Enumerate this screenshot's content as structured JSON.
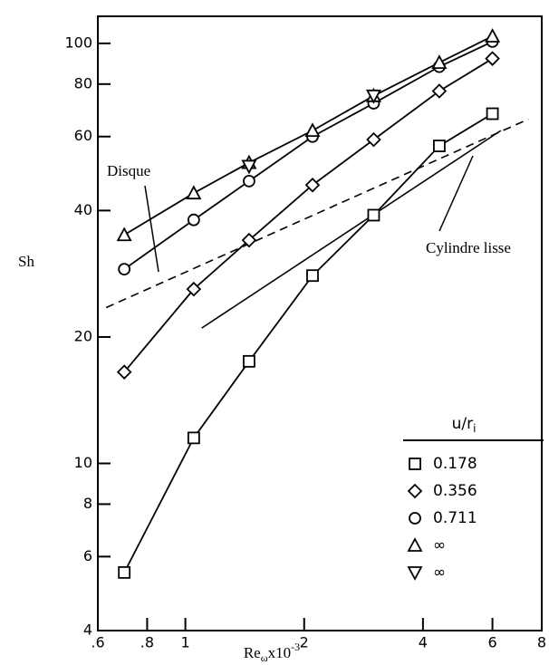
{
  "chart_data": {
    "type": "line",
    "x_label": {
      "text": "Re",
      "subscript": "ω",
      "suffix": "x10",
      "superscript": "-3"
    },
    "y_label": "Sh",
    "x": [
      0.7,
      1.05,
      1.45,
      2.1,
      3.0,
      4.4,
      6.0
    ],
    "series": [
      {
        "name": "0.178",
        "marker": "square",
        "color": "#000",
        "values": [
          5.5,
          11.5,
          17.5,
          28,
          39,
          57,
          68
        ]
      },
      {
        "name": "0.356",
        "marker": "diamond",
        "color": "#000",
        "values": [
          16.5,
          26,
          34,
          46,
          59,
          77,
          92
        ]
      },
      {
        "name": "0.711",
        "marker": "circle",
        "color": "#000",
        "values": [
          29,
          38,
          47,
          60,
          72,
          88,
          101
        ]
      },
      {
        "name": "∞",
        "marker": "triangle-up",
        "color": "#000",
        "values": [
          35,
          44,
          52,
          62,
          75,
          90,
          104
        ]
      },
      {
        "name": "∞",
        "marker": "triangle-down",
        "color": "#000",
        "values": [
          null,
          null,
          51,
          null,
          75,
          null,
          null
        ]
      }
    ],
    "reference_lines": [
      {
        "name": "Disque",
        "dash": true,
        "x": [
          0.63,
          7.4
        ],
        "values": [
          23.5,
          66
        ]
      },
      {
        "name": "Cylindre lisse",
        "dash": false,
        "x": [
          1.1,
          6.3
        ],
        "values": [
          21,
          62
        ]
      }
    ],
    "legend_title": {
      "text": "u/r",
      "subscript": "i"
    },
    "xscale": "log",
    "yscale": "log",
    "xlim": [
      0.6,
      8
    ],
    "ylim": [
      4,
      116
    ],
    "xticks": [
      {
        "value": 0.6,
        "label": ".6"
      },
      {
        "value": 0.8,
        "label": ".8"
      },
      1,
      2,
      4,
      6,
      8
    ],
    "yticks": [
      4,
      6,
      8,
      10,
      20,
      40,
      60,
      80,
      100
    ],
    "grid": false
  }
}
